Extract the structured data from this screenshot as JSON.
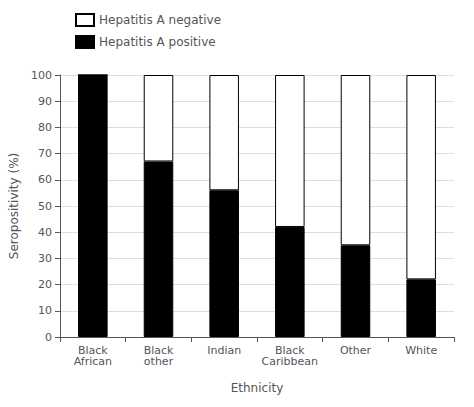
{
  "chart_data": {
    "type": "bar",
    "xlabel": "Ethnicity",
    "ylabel": "Seropositivity (%)",
    "categories": [
      "Black\nAfrican",
      "Black\nother",
      "Indian",
      "Black\nCaribbean",
      "Other",
      "White"
    ],
    "stacked": true,
    "series": [
      {
        "name": "Hepatitis A positive",
        "color": "#000000",
        "values": [
          100,
          67,
          56,
          42,
          35,
          22
        ]
      },
      {
        "name": "Hepatitis A negative",
        "color": "#ffffff",
        "values": [
          0,
          33,
          44,
          58,
          65,
          78
        ]
      }
    ],
    "ylim": [
      0,
      100
    ],
    "yticks": [
      0,
      10,
      20,
      30,
      40,
      50,
      60,
      70,
      80,
      90,
      100
    ],
    "grid": true,
    "legend": "upper left"
  }
}
